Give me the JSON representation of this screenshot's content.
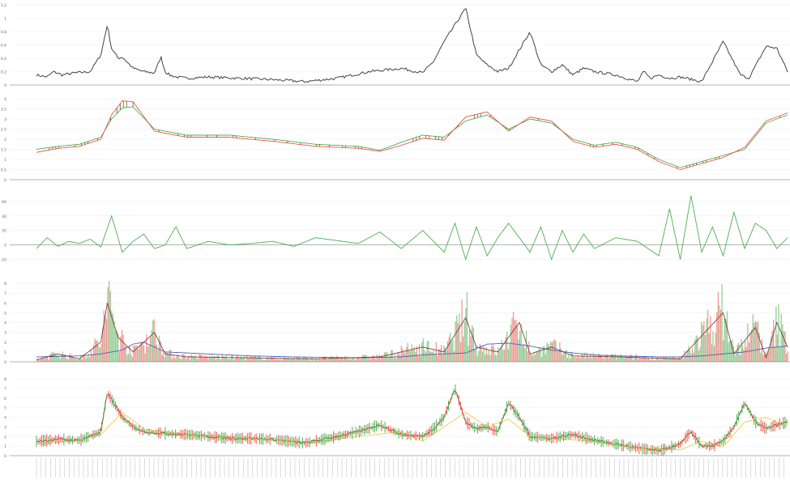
{
  "colors": {
    "background": "#ffffff",
    "grid": "#eeeeee",
    "axis": "#999999",
    "tick_text": "#666666",
    "up": "#ef5350",
    "down": "#4caf50",
    "dark_line": "#444444",
    "blue_line": "#3f51b5",
    "yellow_line": "#f2c94c",
    "brown_line": "#7a2e2e",
    "ohlc_fill": "#5a6b1a"
  },
  "chart_data": [
    {
      "type": "line",
      "panel": "volatility",
      "ylim": [
        0,
        1.2
      ],
      "yticks": [
        0,
        0.2,
        0.4,
        0.6,
        0.8,
        1,
        1.2
      ],
      "grid": true,
      "series": [
        {
          "color": "dark_line",
          "x_index": [
            0,
            5,
            8,
            12,
            18,
            25,
            30,
            33,
            35,
            38,
            40,
            45,
            50,
            55,
            58,
            60,
            62,
            65,
            70,
            80,
            95,
            110,
            125,
            140,
            155,
            170,
            180,
            185,
            190,
            200,
            205,
            210,
            215,
            220,
            230,
            235,
            240,
            245,
            250,
            255,
            260,
            270,
            275,
            280,
            283,
            286,
            290,
            295,
            300,
            310,
            320,
            328,
            332,
            340,
            345,
            350
          ],
          "values": [
            0.15,
            0.12,
            0.2,
            0.15,
            0.18,
            0.2,
            0.45,
            0.9,
            0.55,
            0.4,
            0.42,
            0.25,
            0.2,
            0.18,
            0.42,
            0.2,
            0.15,
            0.12,
            0.1,
            0.12,
            0.1,
            0.08,
            0.05,
            0.1,
            0.2,
            0.25,
            0.18,
            0.35,
            0.65,
            1.15,
            0.45,
            0.3,
            0.2,
            0.25,
            0.8,
            0.3,
            0.2,
            0.3,
            0.15,
            0.25,
            0.2,
            0.15,
            0.1,
            0.05,
            0.2,
            0.1,
            0.15,
            0.1,
            0.12,
            0.05,
            0.65,
            0.15,
            0.1,
            0.58,
            0.55,
            0.2
          ]
        }
      ]
    },
    {
      "type": "line",
      "panel": "moving-average-bands",
      "ylim": [
        0,
        4
      ],
      "yticks": [
        0,
        0.5,
        1,
        1.5,
        2,
        2.5,
        3,
        3.5,
        4
      ],
      "grid": true,
      "series": [
        {
          "color": "down",
          "x_index": [
            0,
            10,
            20,
            30,
            35,
            40,
            45,
            55,
            70,
            90,
            110,
            130,
            150,
            160,
            170,
            180,
            190,
            200,
            210,
            220,
            230,
            240,
            250,
            260,
            270,
            280,
            290,
            300,
            310,
            320,
            330,
            340,
            350
          ],
          "values": [
            1.5,
            1.65,
            1.75,
            2.1,
            3.0,
            3.55,
            3.6,
            2.5,
            2.2,
            2.2,
            2.0,
            1.75,
            1.65,
            1.45,
            1.85,
            2.2,
            2.1,
            2.9,
            3.2,
            2.5,
            3.0,
            2.8,
            2.0,
            1.7,
            1.85,
            1.6,
            1.0,
            0.6,
            0.9,
            1.2,
            1.5,
            2.8,
            3.2
          ]
        },
        {
          "color": "up",
          "x_index": [
            0,
            10,
            20,
            30,
            35,
            40,
            45,
            55,
            70,
            90,
            110,
            130,
            150,
            160,
            170,
            180,
            190,
            200,
            210,
            220,
            230,
            240,
            250,
            260,
            270,
            280,
            290,
            300,
            310,
            320,
            330,
            340,
            350
          ],
          "values": [
            1.35,
            1.55,
            1.65,
            2.0,
            3.2,
            3.9,
            3.85,
            2.4,
            2.1,
            2.1,
            1.9,
            1.65,
            1.55,
            1.4,
            1.7,
            2.05,
            1.95,
            3.1,
            3.35,
            2.4,
            3.1,
            2.9,
            1.9,
            1.6,
            1.75,
            1.5,
            0.9,
            0.5,
            0.8,
            1.1,
            1.6,
            2.9,
            3.3
          ]
        }
      ]
    },
    {
      "type": "line",
      "panel": "oscillator",
      "ylim": [
        -25,
        70
      ],
      "yticks": [
        -20,
        0,
        20,
        40,
        60
      ],
      "grid": true,
      "series": [
        {
          "color": "down",
          "x_index": [
            0,
            5,
            10,
            15,
            20,
            25,
            30,
            35,
            40,
            45,
            50,
            55,
            60,
            65,
            70,
            80,
            90,
            100,
            110,
            120,
            130,
            150,
            160,
            170,
            180,
            190,
            195,
            200,
            205,
            210,
            215,
            220,
            230,
            235,
            240,
            245,
            250,
            255,
            260,
            270,
            280,
            290,
            295,
            300,
            305,
            310,
            315,
            320,
            325,
            330,
            335,
            340,
            345,
            350
          ],
          "values": [
            -5,
            10,
            -2,
            5,
            2,
            8,
            -3,
            40,
            -10,
            5,
            15,
            -5,
            0,
            25,
            -5,
            5,
            0,
            2,
            5,
            -2,
            10,
            2,
            18,
            -5,
            20,
            -10,
            30,
            -20,
            25,
            -15,
            10,
            30,
            -10,
            25,
            -20,
            20,
            -10,
            15,
            -5,
            10,
            5,
            -15,
            50,
            -20,
            68,
            -10,
            25,
            -15,
            45,
            -5,
            30,
            20,
            -5,
            10
          ]
        }
      ]
    },
    {
      "type": "bar",
      "panel": "volume",
      "ylim": [
        0,
        8
      ],
      "yticks": [
        0,
        1,
        2,
        3,
        4,
        5,
        6,
        7,
        8
      ],
      "grid": true,
      "bars": "dense-colored",
      "series": [
        {
          "color": "blue_line",
          "x_index": [
            0,
            20,
            30,
            40,
            45,
            50,
            60,
            80,
            100,
            120,
            150,
            170,
            180,
            200,
            210,
            220,
            230,
            240,
            250,
            260,
            270,
            290,
            300,
            310,
            320,
            330,
            340,
            350
          ],
          "values": [
            0.5,
            0.6,
            0.8,
            1.2,
            1.8,
            2.0,
            1.0,
            0.8,
            0.6,
            0.5,
            0.4,
            0.5,
            0.7,
            0.9,
            1.8,
            1.9,
            1.6,
            1.2,
            0.9,
            0.7,
            0.6,
            0.5,
            0.5,
            0.6,
            0.8,
            1.0,
            1.4,
            1.6
          ]
        },
        {
          "color": "brown_line",
          "x_index": [
            0,
            10,
            20,
            30,
            33,
            38,
            45,
            55,
            60,
            70,
            100,
            130,
            160,
            180,
            190,
            200,
            205,
            215,
            225,
            230,
            240,
            250,
            270,
            300,
            320,
            325,
            335,
            340,
            345,
            350
          ],
          "values": [
            0.2,
            0.8,
            0.3,
            2.0,
            6.0,
            2.5,
            1.0,
            3.0,
            0.8,
            0.5,
            0.4,
            0.3,
            0.5,
            1.5,
            1.0,
            4.5,
            1.5,
            1.0,
            4.0,
            0.8,
            1.5,
            0.6,
            0.5,
            0.3,
            5.0,
            0.8,
            3.5,
            0.4,
            4.0,
            1.5
          ]
        }
      ]
    },
    {
      "type": "line",
      "panel": "price-candles",
      "ylim": [
        0,
        8
      ],
      "yticks": [
        0,
        1,
        2,
        3,
        4,
        5,
        6,
        7,
        8
      ],
      "grid": true,
      "series": [
        {
          "color": "ohlc_fill",
          "x_index": [
            0,
            10,
            20,
            30,
            33,
            36,
            40,
            45,
            50,
            60,
            70,
            80,
            90,
            100,
            110,
            125,
            140,
            150,
            160,
            170,
            180,
            185,
            190,
            195,
            200,
            205,
            210,
            215,
            220,
            225,
            230,
            240,
            250,
            260,
            270,
            280,
            290,
            300,
            305,
            310,
            315,
            320,
            325,
            330,
            335,
            340,
            345,
            350
          ],
          "values": [
            1.5,
            1.7,
            1.6,
            2.5,
            6.5,
            5.5,
            4.0,
            3.0,
            2.5,
            2.3,
            2.2,
            2.0,
            1.8,
            1.8,
            1.7,
            1.3,
            2.0,
            2.5,
            3.2,
            2.2,
            2.0,
            2.8,
            4.0,
            7.0,
            3.5,
            2.8,
            3.0,
            2.5,
            5.5,
            4.0,
            2.0,
            1.8,
            2.2,
            1.6,
            1.2,
            0.8,
            0.5,
            1.2,
            2.5,
            1.0,
            1.0,
            1.5,
            3.0,
            5.5,
            3.5,
            2.8,
            3.2,
            3.5
          ]
        },
        {
          "color": "yellow_line",
          "x_index": [
            0,
            20,
            30,
            40,
            50,
            70,
            100,
            130,
            150,
            170,
            180,
            190,
            200,
            210,
            220,
            230,
            240,
            260,
            280,
            300,
            310,
            320,
            330,
            340,
            350
          ],
          "values": [
            1.2,
            1.6,
            2.2,
            4.5,
            2.8,
            2.2,
            1.8,
            1.4,
            2.0,
            2.5,
            1.5,
            3.0,
            4.5,
            3.0,
            3.8,
            2.0,
            1.8,
            1.5,
            0.8,
            0.6,
            1.5,
            0.9,
            3.5,
            4.0,
            3.0
          ]
        }
      ]
    }
  ]
}
